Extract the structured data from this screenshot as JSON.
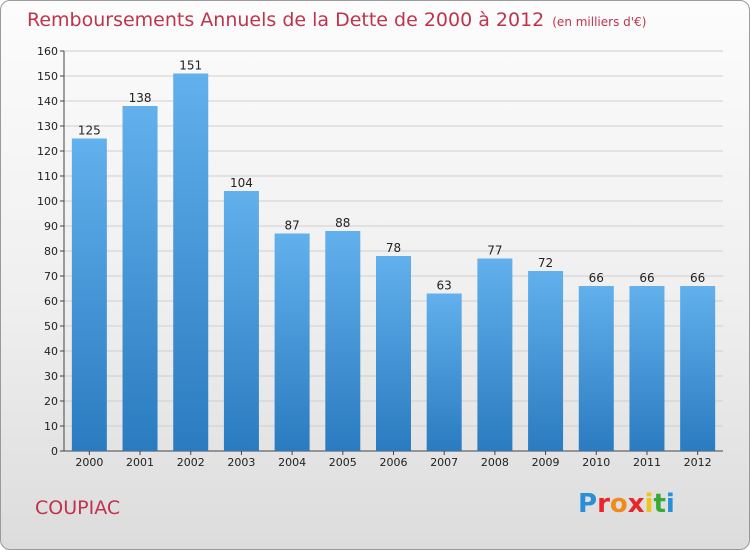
{
  "header": {
    "title": "Remboursements Annuels de la Dette de 2000 à 2012",
    "subtitle": "(en milliers d'€)"
  },
  "footer": {
    "commune": "COUPIAC",
    "logo_letters": [
      {
        "ch": "P",
        "color": "#2a8fd6"
      },
      {
        "ch": "r",
        "color": "#e8262a"
      },
      {
        "ch": "o",
        "color": "#f08a1c"
      },
      {
        "ch": "x",
        "color": "#e8262a"
      },
      {
        "ch": "i",
        "color": "#f0c419"
      },
      {
        "ch": "t",
        "color": "#39a935"
      },
      {
        "ch": "i",
        "color": "#2a8fd6"
      }
    ]
  },
  "chart_data": {
    "type": "bar",
    "title": "Remboursements Annuels de la Dette de 2000 à 2012",
    "subtitle": "(en milliers d'€)",
    "categories": [
      "2000",
      "2001",
      "2002",
      "2003",
      "2004",
      "2005",
      "2006",
      "2007",
      "2008",
      "2009",
      "2010",
      "2011",
      "2012"
    ],
    "values": [
      125,
      138,
      151,
      104,
      87,
      88,
      78,
      63,
      77,
      72,
      66,
      66,
      66
    ],
    "ylim": [
      0,
      160
    ],
    "ytick_step": 10,
    "grid": true,
    "bar_color_top": "#62b0ec",
    "bar_color_bottom": "#2a7bc0"
  }
}
